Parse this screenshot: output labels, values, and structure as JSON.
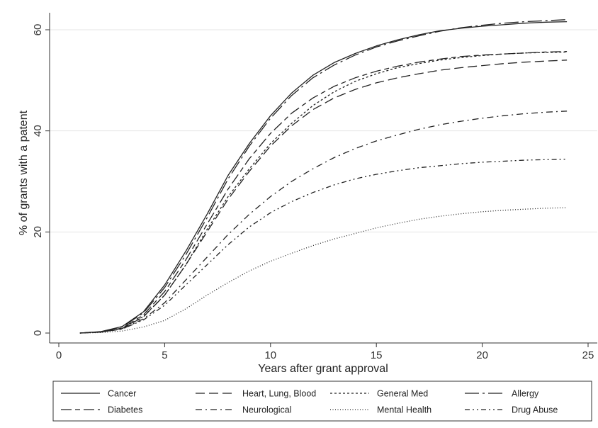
{
  "chart_data": {
    "type": "line",
    "xlabel": "Years after grant approval",
    "ylabel": "% of grants with a patent",
    "xlim": [
      0,
      25
    ],
    "ylim": [
      0,
      62
    ],
    "xticks": [
      0,
      5,
      10,
      15,
      20,
      25
    ],
    "yticks": [
      0,
      20,
      40,
      60
    ],
    "grid": "horizontal",
    "legend_position": "bottom",
    "x": [
      1,
      2,
      3,
      4,
      5,
      6,
      7,
      8,
      9,
      10,
      11,
      12,
      13,
      14,
      15,
      16,
      17,
      18,
      19,
      20,
      21,
      22,
      23,
      24
    ],
    "series": [
      {
        "name": "Cancer",
        "style": "solid",
        "values": [
          0,
          0.3,
          1.3,
          4.2,
          9.5,
          16.2,
          23.5,
          31.2,
          37.5,
          43.0,
          47.5,
          51.0,
          53.5,
          55.3,
          56.8,
          58.0,
          59.0,
          59.8,
          60.3,
          60.7,
          61.0,
          61.3,
          61.5,
          61.6
        ]
      },
      {
        "name": "Heart, Lung, Blood",
        "style": "long-dash",
        "values": [
          0,
          0.2,
          0.9,
          3.2,
          7.5,
          13.5,
          20.0,
          26.5,
          32.0,
          37.0,
          41.0,
          44.2,
          46.5,
          48.2,
          49.5,
          50.5,
          51.3,
          52.0,
          52.5,
          52.9,
          53.3,
          53.6,
          53.8,
          54.0
        ]
      },
      {
        "name": "General Med",
        "style": "dotted-short",
        "values": [
          0,
          0.2,
          0.9,
          3.3,
          7.5,
          13.5,
          20.5,
          27.0,
          32.5,
          37.5,
          41.5,
          45.0,
          47.7,
          49.8,
          51.3,
          52.5,
          53.3,
          54.0,
          54.5,
          54.9,
          55.2,
          55.4,
          55.5,
          55.6
        ]
      },
      {
        "name": "Allergy",
        "style": "long-dash-dot",
        "values": [
          0,
          0.3,
          1.2,
          4.0,
          9.0,
          15.5,
          22.8,
          30.5,
          37.0,
          42.5,
          47.0,
          50.5,
          53.0,
          55.0,
          56.6,
          57.8,
          58.8,
          59.7,
          60.4,
          60.9,
          61.3,
          61.6,
          61.8,
          62.0
        ]
      },
      {
        "name": "Diabetes",
        "style": "long-short-dash",
        "values": [
          0,
          0.2,
          1.0,
          3.6,
          8.2,
          14.5,
          21.5,
          28.5,
          34.5,
          39.5,
          43.5,
          46.5,
          48.8,
          50.5,
          51.8,
          52.8,
          53.6,
          54.2,
          54.7,
          55.0,
          55.2,
          55.4,
          55.6,
          55.7
        ]
      },
      {
        "name": "Neurological",
        "style": "dash-dot",
        "values": [
          0,
          0.2,
          0.8,
          2.8,
          6.0,
          10.5,
          15.0,
          19.5,
          23.5,
          27.0,
          30.0,
          32.5,
          34.7,
          36.5,
          38.0,
          39.2,
          40.3,
          41.2,
          41.9,
          42.5,
          43.0,
          43.4,
          43.7,
          43.9
        ]
      },
      {
        "name": "Mental Health",
        "style": "fine-dot",
        "values": [
          0,
          0.1,
          0.4,
          1.2,
          2.5,
          4.8,
          7.5,
          10.0,
          12.3,
          14.2,
          15.8,
          17.3,
          18.6,
          19.7,
          20.8,
          21.7,
          22.5,
          23.1,
          23.6,
          24.0,
          24.3,
          24.5,
          24.7,
          24.8
        ]
      },
      {
        "name": "Drug Abuse",
        "style": "dash-dot-dot",
        "values": [
          0,
          0.2,
          0.8,
          2.6,
          5.5,
          9.5,
          13.5,
          17.5,
          21.0,
          23.8,
          26.0,
          27.8,
          29.3,
          30.5,
          31.4,
          32.1,
          32.7,
          33.1,
          33.5,
          33.8,
          34.0,
          34.2,
          34.3,
          34.4
        ]
      }
    ]
  }
}
